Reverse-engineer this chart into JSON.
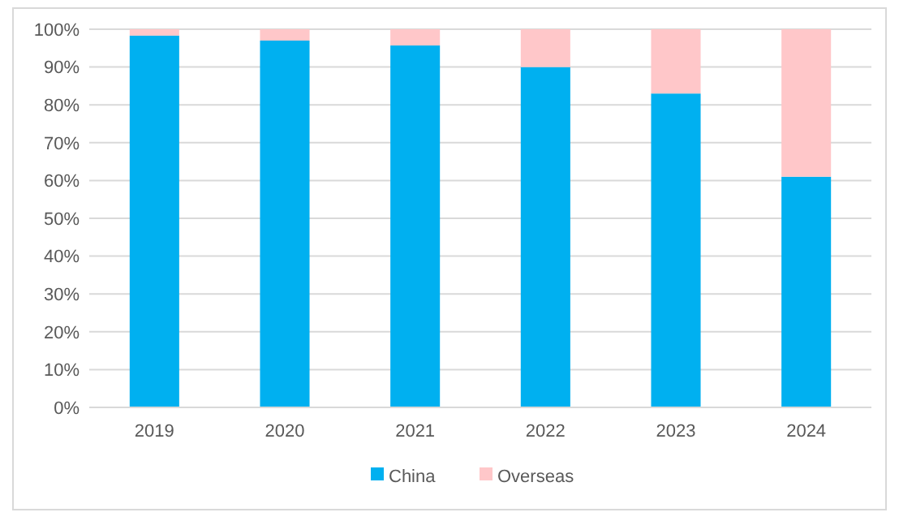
{
  "chart_data": {
    "type": "bar",
    "stacked": true,
    "categories": [
      "2019",
      "2020",
      "2021",
      "2022",
      "2023",
      "2024"
    ],
    "series": [
      {
        "name": "China",
        "color": "#00b0f0",
        "values": [
          98.3,
          97,
          95.7,
          90,
          83,
          61
        ]
      },
      {
        "name": "Overseas",
        "color": "#ffc7c9",
        "values": [
          1.7,
          3,
          4.3,
          10,
          17,
          39
        ]
      }
    ],
    "ylim": [
      0,
      100
    ],
    "yticks": [
      {
        "value": 0,
        "label": "0%"
      },
      {
        "value": 10,
        "label": "10%"
      },
      {
        "value": 20,
        "label": "20%"
      },
      {
        "value": 30,
        "label": "30%"
      },
      {
        "value": 40,
        "label": "40%"
      },
      {
        "value": 50,
        "label": "50%"
      },
      {
        "value": 60,
        "label": "60%"
      },
      {
        "value": 70,
        "label": "70%"
      },
      {
        "value": 80,
        "label": "80%"
      },
      {
        "value": 90,
        "label": "90%"
      },
      {
        "value": 100,
        "label": "100%"
      }
    ],
    "grid": "y",
    "legend": "bottom"
  }
}
